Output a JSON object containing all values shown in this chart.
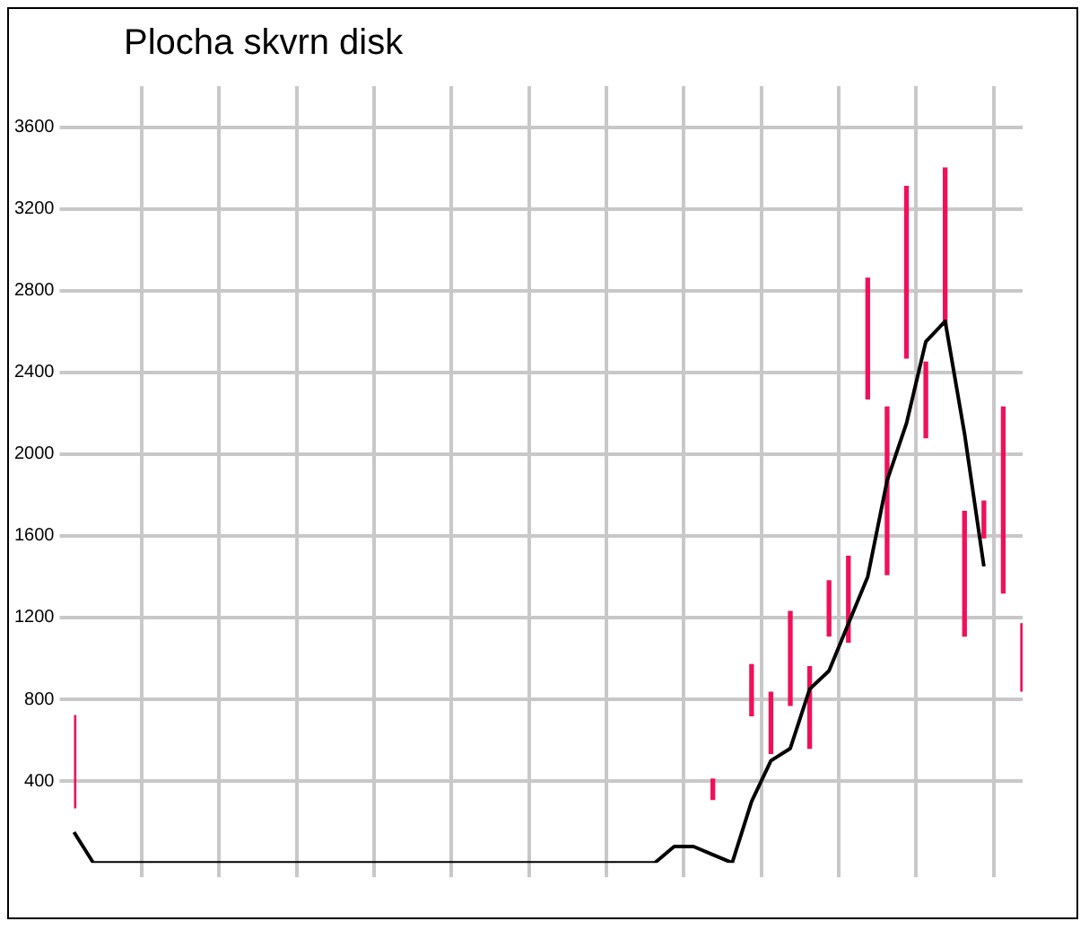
{
  "chart_data": {
    "type": "line",
    "title": "Plocha skvrn disk",
    "categories": [
      null,
      null,
      null,
      null,
      null,
      null,
      null,
      null,
      null,
      null,
      null,
      null,
      null,
      null,
      null,
      null,
      null,
      null,
      null,
      null,
      null,
      null,
      null,
      null,
      null,
      null,
      null,
      null,
      null,
      null,
      null,
      null,
      null,
      null,
      null,
      null,
      null,
      null,
      null,
      null,
      null,
      null,
      null,
      null,
      null,
      null,
      null,
      null,
      null,
      null
    ],
    "series": [
      {
        "type": "bar",
        "color": "#f0105a",
        "base": [
          270,
          null,
          null,
          null,
          null,
          null,
          null,
          null,
          null,
          null,
          null,
          null,
          null,
          null,
          null,
          null,
          null,
          null,
          null,
          null,
          null,
          null,
          null,
          null,
          null,
          null,
          null,
          null,
          null,
          null,
          null,
          null,
          null,
          310,
          null,
          720,
          535,
          770,
          560,
          1110,
          1080,
          2270,
          1410,
          2470,
          2080,
          2630,
          1110,
          1590,
          1320,
          840
        ],
        "values": [
          450,
          null,
          null,
          null,
          null,
          null,
          null,
          null,
          null,
          null,
          null,
          null,
          null,
          null,
          null,
          null,
          null,
          null,
          null,
          null,
          null,
          null,
          null,
          null,
          null,
          null,
          null,
          null,
          null,
          null,
          null,
          null,
          null,
          100,
          null,
          250,
          300,
          460,
          400,
          270,
          420,
          590,
          820,
          840,
          370,
          770,
          610,
          180,
          910,
          330
        ]
      },
      {
        "color": "#000000",
        "values": [
          150,
          0,
          0,
          0,
          0,
          0,
          0,
          0,
          0,
          0,
          0,
          0,
          0,
          0,
          0,
          0,
          0,
          0,
          0,
          0,
          0,
          0,
          0,
          0,
          0,
          0,
          0,
          0,
          0,
          0,
          0,
          80,
          80,
          40,
          0,
          300,
          500,
          560,
          850,
          940,
          1170,
          1400,
          1870,
          2150,
          2550,
          2650,
          2100,
          1450,
          null,
          null
        ]
      }
    ],
    "ylim": [
      0,
      3800
    ],
    "yticks": [
      400,
      800,
      1200,
      1600,
      2000,
      2400,
      2800,
      3200,
      3600
    ],
    "grid": true,
    "legend": false,
    "marker": "none",
    "line_style": "solid"
  }
}
